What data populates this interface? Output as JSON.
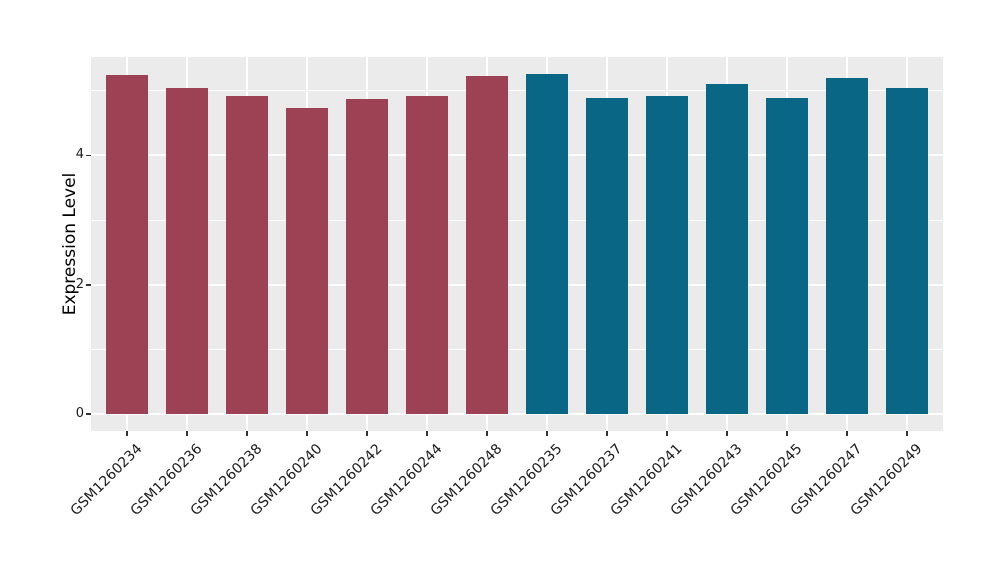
{
  "chart_data": {
    "type": "bar",
    "title": "",
    "xlabel": "",
    "ylabel": "Expression Level",
    "categories": [
      "GSM1260234",
      "GSM1260236",
      "GSM1260238",
      "GSM1260240",
      "GSM1260242",
      "GSM1260244",
      "GSM1260248",
      "GSM1260235",
      "GSM1260237",
      "GSM1260241",
      "GSM1260243",
      "GSM1260245",
      "GSM1260247",
      "GSM1260249"
    ],
    "values": [
      5.24,
      5.04,
      4.91,
      4.73,
      4.87,
      4.91,
      5.23,
      5.26,
      4.88,
      4.91,
      5.1,
      4.89,
      5.2,
      5.04
    ],
    "bar_colors": [
      "#9C4254",
      "#9C4254",
      "#9C4254",
      "#9C4254",
      "#9C4254",
      "#9C4254",
      "#9C4254",
      "#0A6685",
      "#0A6685",
      "#0A6685",
      "#0A6685",
      "#0A6685",
      "#0A6685",
      "#0A6685"
    ],
    "group_colors": {
      "left_group": "#9C4254",
      "right_group": "#0A6685"
    },
    "yticks": [
      0,
      2,
      4
    ],
    "yticks_minor": [
      1,
      3,
      5
    ],
    "ylim": [
      -0.26,
      5.52
    ],
    "grid": "on",
    "gridline_color": "#FFFFFF",
    "panel_background": "#EBEBEB",
    "figure_background": "#FFFFFF",
    "legend_position": "none",
    "x_label_rotation_deg": 45
  }
}
